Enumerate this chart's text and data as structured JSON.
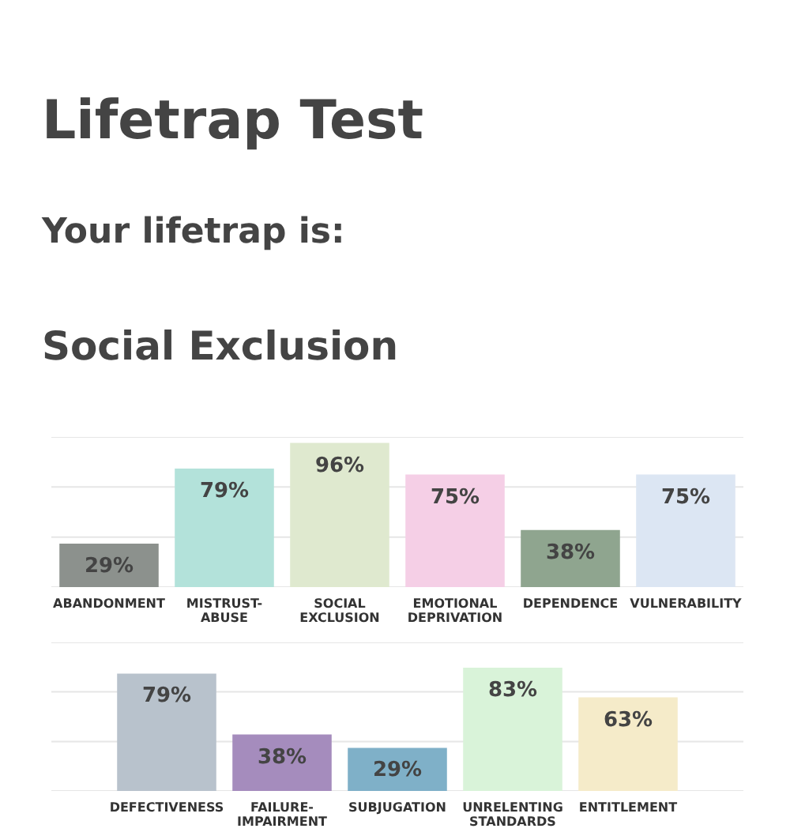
{
  "chart_data": [
    {
      "type": "bar",
      "title": "Lifetrap Test",
      "subtitle": "Your lifetrap is:",
      "annotations": [
        "Social Exclusion"
      ],
      "categories": [
        "ABANDONMENT",
        "MISTRUST-ABUSE",
        "SOCIAL EXCLUSION",
        "EMOTIONAL DEPRIVATION",
        "DEPENDENCE",
        "VULNERABILITY"
      ],
      "values": [
        29,
        79,
        96,
        75,
        38,
        75
      ],
      "value_labels": [
        "29%",
        "79%",
        "96%",
        "75%",
        "38%",
        "75%"
      ],
      "colors": [
        "#8c918d",
        "#b3e2da",
        "#dfe9cf",
        "#f5cfe6",
        "#8fa58f",
        "#dce6f3"
      ],
      "ylim": [
        0,
        100
      ],
      "yticks": [
        {
          "value": 0,
          "label": null
        },
        {
          "value": 33.3,
          "label": null
        },
        {
          "value": 66.7,
          "label": null
        },
        {
          "value": 100,
          "label": null
        }
      ],
      "grid": "y",
      "tick_labels": "x"
    },
    {
      "type": "bar",
      "categories": [
        "DEFECTIVENESS",
        "FAILURE-IMPAIRMENT",
        "SUBJUGATION",
        "UNRELENTING STANDARDS",
        "ENTITLEMENT"
      ],
      "values": [
        79,
        38,
        29,
        83,
        63
      ],
      "value_labels": [
        "79%",
        "38%",
        "29%",
        "83%",
        "63%"
      ],
      "colors": [
        "#b8c2cc",
        "#a58cbd",
        "#7fb0c8",
        "#d9f3d9",
        "#f5ebc9"
      ],
      "ylim": [
        0,
        100
      ],
      "yticks": [
        {
          "value": 0,
          "label": null
        },
        {
          "value": 33.3,
          "label": null
        },
        {
          "value": 66.7,
          "label": null
        },
        {
          "value": 100,
          "label": null
        }
      ],
      "grid": "y",
      "tick_labels": "x"
    }
  ]
}
